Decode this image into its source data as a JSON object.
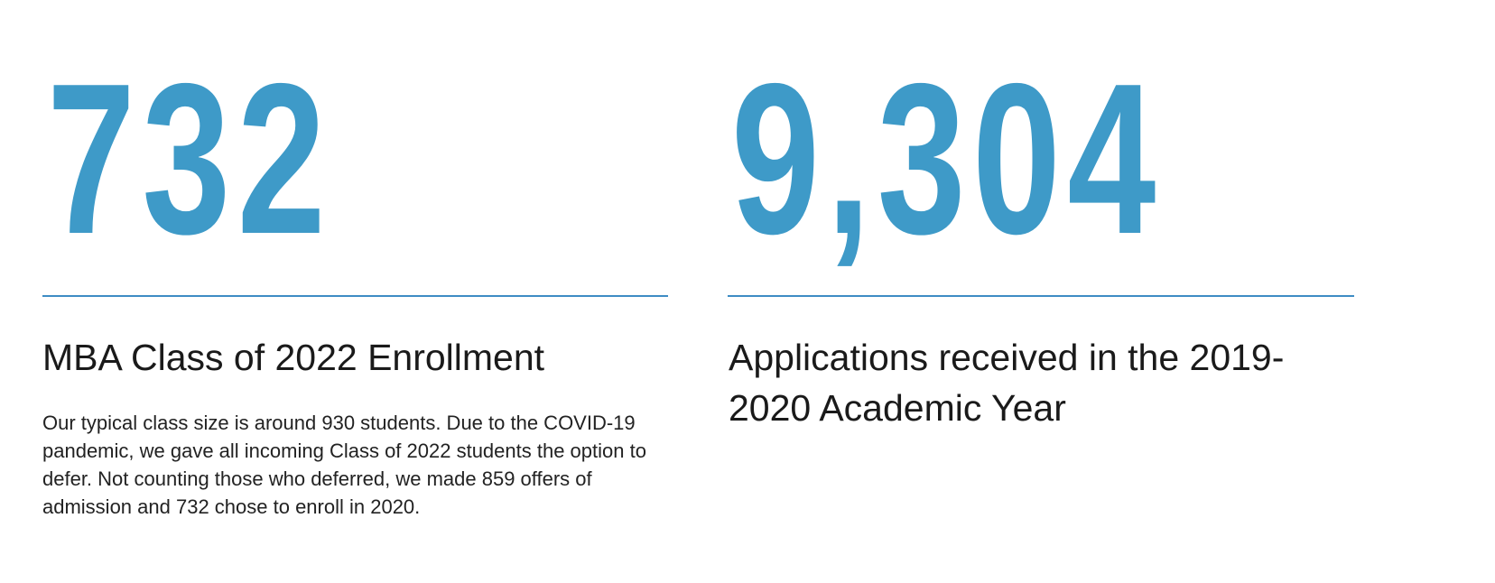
{
  "accent_color": "#3e9ac8",
  "left": {
    "stat": "732",
    "heading": "MBA Class of 2022 Enrollment",
    "body": "Our typical class size is around 930 students. Due to the COVID-19 pandemic, we gave all incoming Class of 2022 students the option to defer. Not counting those who deferred, we made 859 offers of admission and 732 chose to enroll in 2020."
  },
  "right": {
    "stat": "9,304",
    "heading": "Applications received in the 2019-2020 Academic Year"
  }
}
